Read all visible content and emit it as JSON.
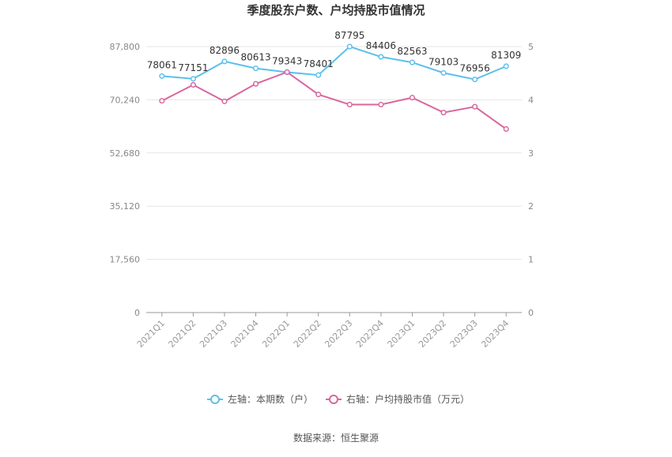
{
  "chart_data": {
    "type": "line",
    "title": "季度股东户数、户均持股市值情况",
    "source": "数据来源：恒生聚源",
    "categories": [
      "2021Q1",
      "2021Q2",
      "2021Q3",
      "2021Q4",
      "2022Q1",
      "2022Q2",
      "2022Q3",
      "2022Q4",
      "2023Q1",
      "2023Q2",
      "2023Q3",
      "2023Q4"
    ],
    "left_axis": {
      "ticks": [
        "0",
        "17,560",
        "35,120",
        "52,680",
        "70,240",
        "87,800"
      ],
      "tick_values": [
        0,
        17560,
        35120,
        52680,
        70240,
        87800
      ],
      "range": [
        0,
        87800
      ]
    },
    "right_axis": {
      "ticks": [
        "0",
        "1",
        "2",
        "3",
        "4",
        "5"
      ],
      "tick_values": [
        0,
        1,
        2,
        3,
        4,
        5
      ],
      "range": [
        0,
        5
      ]
    },
    "series": [
      {
        "name": "左轴：本期数（户）",
        "axis": "left",
        "color": "#5bc0eb",
        "values": [
          78061,
          77151,
          82896,
          80613,
          79343,
          78401,
          87795,
          84406,
          82563,
          79103,
          76956,
          81309
        ],
        "labels": [
          "78061",
          "77151",
          "82896",
          "80613",
          "79343",
          "78401",
          "87795",
          "84406",
          "82563",
          "79103",
          "76956",
          "81309"
        ]
      },
      {
        "name": "右轴：户均持股市值（万元）",
        "axis": "right",
        "color": "#d9679f",
        "values": [
          3.98,
          4.28,
          3.97,
          4.3,
          4.52,
          4.1,
          3.91,
          3.91,
          4.04,
          3.76,
          3.87,
          3.45
        ]
      }
    ],
    "grid": true,
    "legend": "bottom-center"
  }
}
